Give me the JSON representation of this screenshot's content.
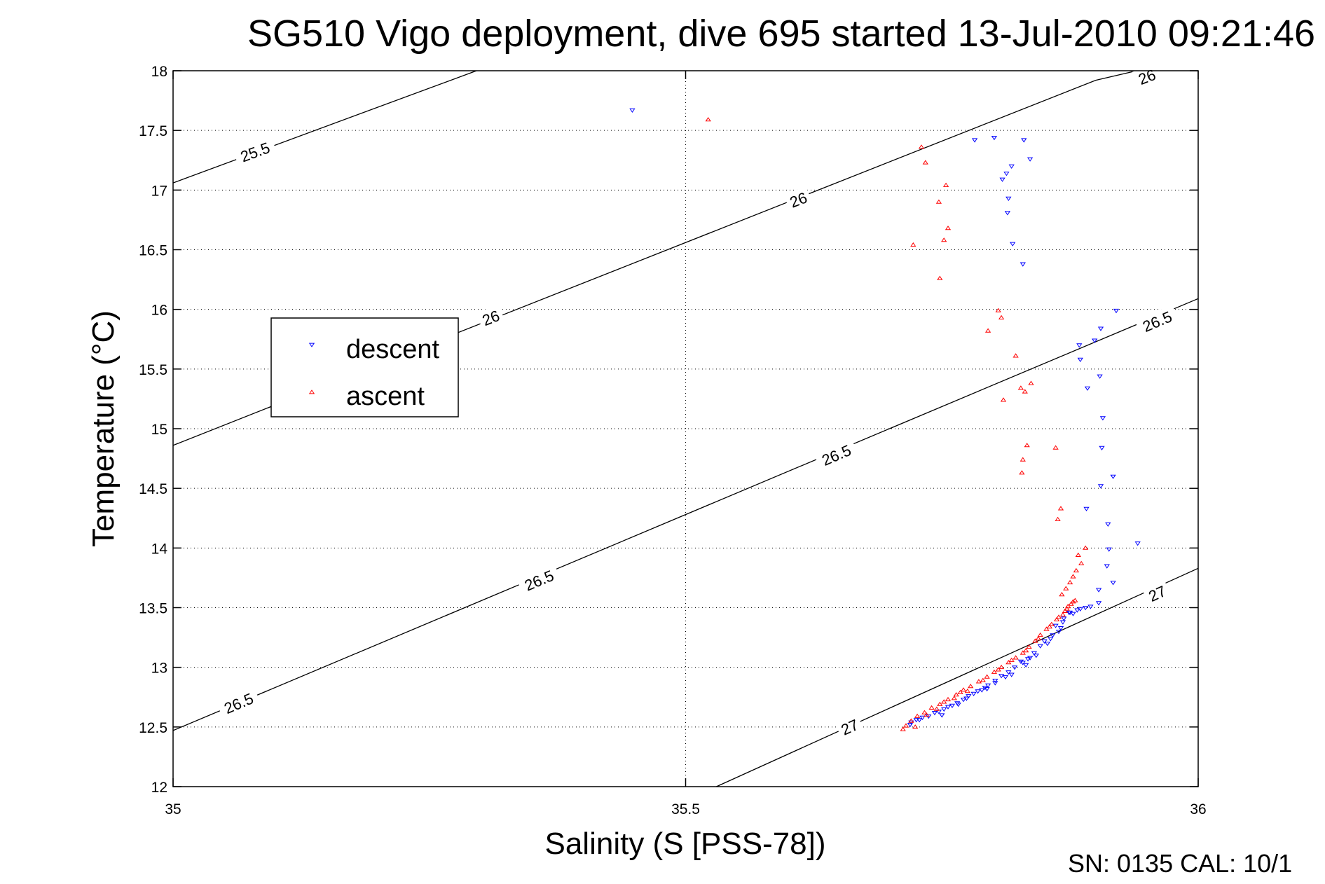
{
  "chart_data": {
    "type": "scatter",
    "title": "SG510 Vigo deployment, dive 695 started 13-Jul-2010 09:21:46",
    "xlabel": "Salinity (S [PSS-78])",
    "ylabel": "Temperature (°C)",
    "xlim": [
      35,
      36
    ],
    "ylim": [
      12,
      18
    ],
    "xticks": [
      "35",
      "35.5",
      "36"
    ],
    "yticks": [
      "12",
      "12.5",
      "13",
      "13.5",
      "14",
      "14.5",
      "15",
      "15.5",
      "16",
      "16.5",
      "17",
      "17.5",
      "18"
    ],
    "grid": true,
    "legend_position": "left",
    "footer": "SN: 0135  CAL: 10/1",
    "colors": {
      "descent": "#0000ff",
      "ascent": "#ff0000",
      "axis": "#000000",
      "grid": "#000000"
    },
    "density_contours": [
      {
        "label": "25.5",
        "points": [
          [
            35.0,
            17.06
          ],
          [
            35.296,
            18.0
          ]
        ],
        "label_positions": [
          [
            35.08,
            17.32
          ]
        ]
      },
      {
        "label": "26",
        "points": [
          [
            35.0,
            14.86
          ],
          [
            35.9,
            17.92
          ],
          [
            35.94,
            18.0
          ]
        ],
        "label_positions": [
          [
            35.31,
            15.93
          ],
          [
            35.61,
            16.92
          ],
          [
            35.95,
            17.95
          ]
        ]
      },
      {
        "label": "26.5",
        "points": [
          [
            35.0,
            12.47
          ],
          [
            36.0,
            16.09
          ]
        ],
        "label_positions": [
          [
            35.064,
            12.7
          ],
          [
            35.357,
            13.73
          ],
          [
            35.647,
            14.78
          ],
          [
            35.96,
            15.9
          ]
        ]
      },
      {
        "label": "27",
        "points": [
          [
            35.53,
            12.0
          ],
          [
            36.0,
            13.83
          ]
        ],
        "label_positions": [
          [
            35.66,
            12.5
          ],
          [
            35.96,
            13.62
          ]
        ]
      }
    ],
    "series": [
      {
        "name": "descent",
        "marker": "triangle-down",
        "color": "#0000ff",
        "points": [
          [
            35.448,
            17.67
          ],
          [
            35.782,
            17.42
          ],
          [
            35.801,
            17.44
          ],
          [
            35.83,
            17.42
          ],
          [
            35.836,
            17.26
          ],
          [
            35.818,
            17.2
          ],
          [
            35.813,
            17.14
          ],
          [
            35.809,
            17.09
          ],
          [
            35.815,
            16.93
          ],
          [
            35.814,
            16.81
          ],
          [
            35.819,
            16.55
          ],
          [
            35.829,
            16.38
          ],
          [
            35.92,
            15.99
          ],
          [
            35.905,
            15.84
          ],
          [
            35.899,
            15.74
          ],
          [
            35.884,
            15.7
          ],
          [
            35.885,
            15.58
          ],
          [
            35.892,
            15.34
          ],
          [
            35.904,
            15.44
          ],
          [
            35.907,
            15.09
          ],
          [
            35.906,
            14.84
          ],
          [
            35.905,
            14.52
          ],
          [
            35.917,
            14.6
          ],
          [
            35.891,
            14.33
          ],
          [
            35.912,
            14.2
          ],
          [
            35.913,
            13.99
          ],
          [
            35.941,
            14.04
          ],
          [
            35.911,
            13.85
          ],
          [
            35.917,
            13.71
          ],
          [
            35.903,
            13.65
          ],
          [
            35.903,
            13.54
          ],
          [
            35.895,
            13.51
          ],
          [
            35.885,
            13.49
          ],
          [
            35.874,
            13.46
          ],
          [
            35.869,
            13.41
          ],
          [
            35.861,
            13.35
          ],
          [
            35.866,
            13.33
          ],
          [
            35.858,
            13.27
          ],
          [
            35.85,
            13.22
          ],
          [
            35.846,
            13.18
          ],
          [
            35.84,
            13.12
          ],
          [
            35.834,
            13.07
          ],
          [
            35.829,
            13.04
          ],
          [
            35.821,
            13.0
          ],
          [
            35.815,
            12.96
          ],
          [
            35.808,
            12.93
          ],
          [
            35.802,
            12.89
          ],
          [
            35.795,
            12.85
          ],
          [
            35.789,
            12.81
          ],
          [
            35.781,
            12.78
          ],
          [
            35.774,
            12.74
          ],
          [
            35.765,
            12.7
          ],
          [
            35.756,
            12.67
          ],
          [
            35.747,
            12.63
          ],
          [
            35.737,
            12.59
          ],
          [
            35.728,
            12.56
          ],
          [
            35.72,
            12.54
          ],
          [
            35.771,
            12.73
          ],
          [
            35.794,
            12.82
          ],
          [
            35.818,
            12.94
          ],
          [
            35.842,
            13.1
          ],
          [
            35.853,
            13.2
          ],
          [
            35.864,
            13.3
          ],
          [
            35.878,
            13.45
          ],
          [
            35.75,
            12.6
          ],
          [
            35.766,
            12.69
          ],
          [
            35.785,
            12.8
          ],
          [
            35.802,
            12.87
          ],
          [
            35.832,
            13.02
          ],
          [
            35.875,
            13.46
          ],
          [
            35.882,
            13.48
          ],
          [
            35.89,
            13.5
          ],
          [
            35.868,
            13.38
          ],
          [
            35.856,
            13.24
          ],
          [
            35.836,
            13.08
          ],
          [
            35.812,
            12.92
          ],
          [
            35.792,
            12.83
          ],
          [
            35.776,
            12.76
          ],
          [
            35.76,
            12.68
          ],
          [
            35.743,
            12.62
          ],
          [
            35.731,
            12.58
          ],
          [
            35.725,
            12.56
          ],
          [
            35.719,
            12.52
          ],
          [
            35.752,
            12.65
          ],
          [
            35.827,
            13.05
          ]
        ]
      },
      {
        "name": "ascent",
        "marker": "triangle-up",
        "color": "#ff0000",
        "points": [
          [
            35.522,
            17.59
          ],
          [
            35.73,
            17.36
          ],
          [
            35.734,
            17.23
          ],
          [
            35.754,
            17.04
          ],
          [
            35.747,
            16.9
          ],
          [
            35.756,
            16.68
          ],
          [
            35.752,
            16.58
          ],
          [
            35.722,
            16.54
          ],
          [
            35.748,
            16.26
          ],
          [
            35.805,
            15.99
          ],
          [
            35.808,
            15.93
          ],
          [
            35.795,
            15.82
          ],
          [
            35.822,
            15.61
          ],
          [
            35.837,
            15.38
          ],
          [
            35.827,
            15.34
          ],
          [
            35.81,
            15.24
          ],
          [
            35.831,
            15.31
          ],
          [
            35.833,
            14.86
          ],
          [
            35.861,
            14.84
          ],
          [
            35.829,
            14.74
          ],
          [
            35.828,
            14.63
          ],
          [
            35.866,
            14.33
          ],
          [
            35.863,
            14.24
          ],
          [
            35.89,
            14.0
          ],
          [
            35.883,
            13.94
          ],
          [
            35.886,
            13.87
          ],
          [
            35.881,
            13.81
          ],
          [
            35.878,
            13.76
          ],
          [
            35.875,
            13.71
          ],
          [
            35.871,
            13.66
          ],
          [
            35.867,
            13.61
          ],
          [
            35.88,
            13.56
          ],
          [
            35.876,
            13.53
          ],
          [
            35.872,
            13.49
          ],
          [
            35.868,
            13.44
          ],
          [
            35.862,
            13.4
          ],
          [
            35.857,
            13.36
          ],
          [
            35.852,
            13.32
          ],
          [
            35.846,
            13.27
          ],
          [
            35.841,
            13.22
          ],
          [
            35.835,
            13.17
          ],
          [
            35.829,
            13.12
          ],
          [
            35.822,
            13.08
          ],
          [
            35.815,
            13.04
          ],
          [
            35.808,
            13.0
          ],
          [
            35.801,
            12.96
          ],
          [
            35.794,
            12.92
          ],
          [
            35.786,
            12.88
          ],
          [
            35.778,
            12.84
          ],
          [
            35.771,
            12.81
          ],
          [
            35.764,
            12.77
          ],
          [
            35.756,
            12.73
          ],
          [
            35.748,
            12.69
          ],
          [
            35.74,
            12.66
          ],
          [
            35.733,
            12.62
          ],
          [
            35.726,
            12.59
          ],
          [
            35.72,
            12.55
          ],
          [
            35.715,
            12.51
          ],
          [
            35.712,
            12.48
          ],
          [
            35.724,
            12.5
          ],
          [
            35.735,
            12.6
          ],
          [
            35.745,
            12.65
          ],
          [
            35.762,
            12.74
          ],
          [
            35.775,
            12.8
          ],
          [
            35.79,
            12.89
          ],
          [
            35.805,
            12.98
          ],
          [
            35.818,
            13.06
          ],
          [
            35.832,
            13.14
          ],
          [
            35.844,
            13.24
          ],
          [
            35.855,
            13.34
          ],
          [
            35.864,
            13.42
          ],
          [
            35.87,
            13.47
          ],
          [
            35.873,
            13.51
          ],
          [
            35.878,
            13.55
          ],
          [
            35.752,
            12.71
          ],
          [
            35.768,
            12.79
          ]
        ]
      }
    ]
  }
}
